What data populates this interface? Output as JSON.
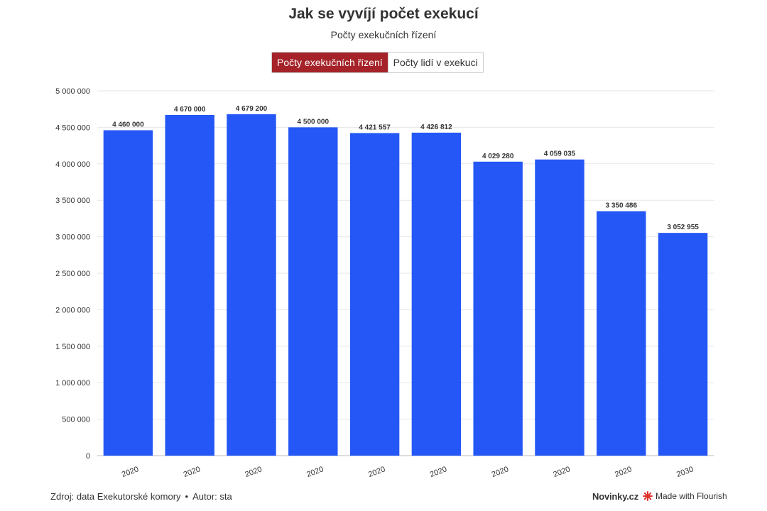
{
  "header": {
    "title": "Jak se vyvíjí počet exekucí",
    "subtitle": "Počty exekučních řízení"
  },
  "toggle": {
    "options": [
      "Počty exekučních řízení",
      "Počty lidí v exekuci"
    ],
    "active_index": 0
  },
  "colors": {
    "bar": "#2457f5",
    "active_toggle": "#a52228",
    "grid": "#e6e6e6",
    "flourish_logo": "#e0322c"
  },
  "chart_data": {
    "type": "bar",
    "categories": [
      "2020",
      "2020",
      "2020",
      "2020",
      "2020",
      "2020",
      "2020",
      "2020",
      "2020",
      "2030"
    ],
    "values": [
      4460000,
      4670000,
      4679200,
      4500000,
      4421557,
      4426812,
      4029280,
      4059035,
      3350486,
      3052955
    ],
    "value_labels": [
      "4 460 000",
      "4 670 000",
      "4 679 200",
      "4 500 000",
      "4 421 557",
      "4 426 812",
      "4 029 280",
      "4 059 035",
      "3 350 486",
      "3 052 955"
    ],
    "ylim": [
      0,
      5000000
    ],
    "yticks": [
      0,
      500000,
      1000000,
      1500000,
      2000000,
      2500000,
      3000000,
      3500000,
      4000000,
      4500000,
      5000000
    ],
    "ytick_labels": [
      "0",
      "500 000",
      "1 000 000",
      "1 500 000",
      "2 000 000",
      "2 500 000",
      "3 000 000",
      "3 500 000",
      "4 000 000",
      "4 500 000",
      "5 000 000"
    ],
    "grid": true,
    "xtick_rotation": "slanted"
  },
  "footer": {
    "source": "Zdroj: data Exekutorské komory",
    "separator": "•",
    "author": "Autor: sta",
    "brand": "Novinky.cz",
    "made_with": "Made with Flourish",
    "flourish_icon": "flourish-logo-icon"
  }
}
